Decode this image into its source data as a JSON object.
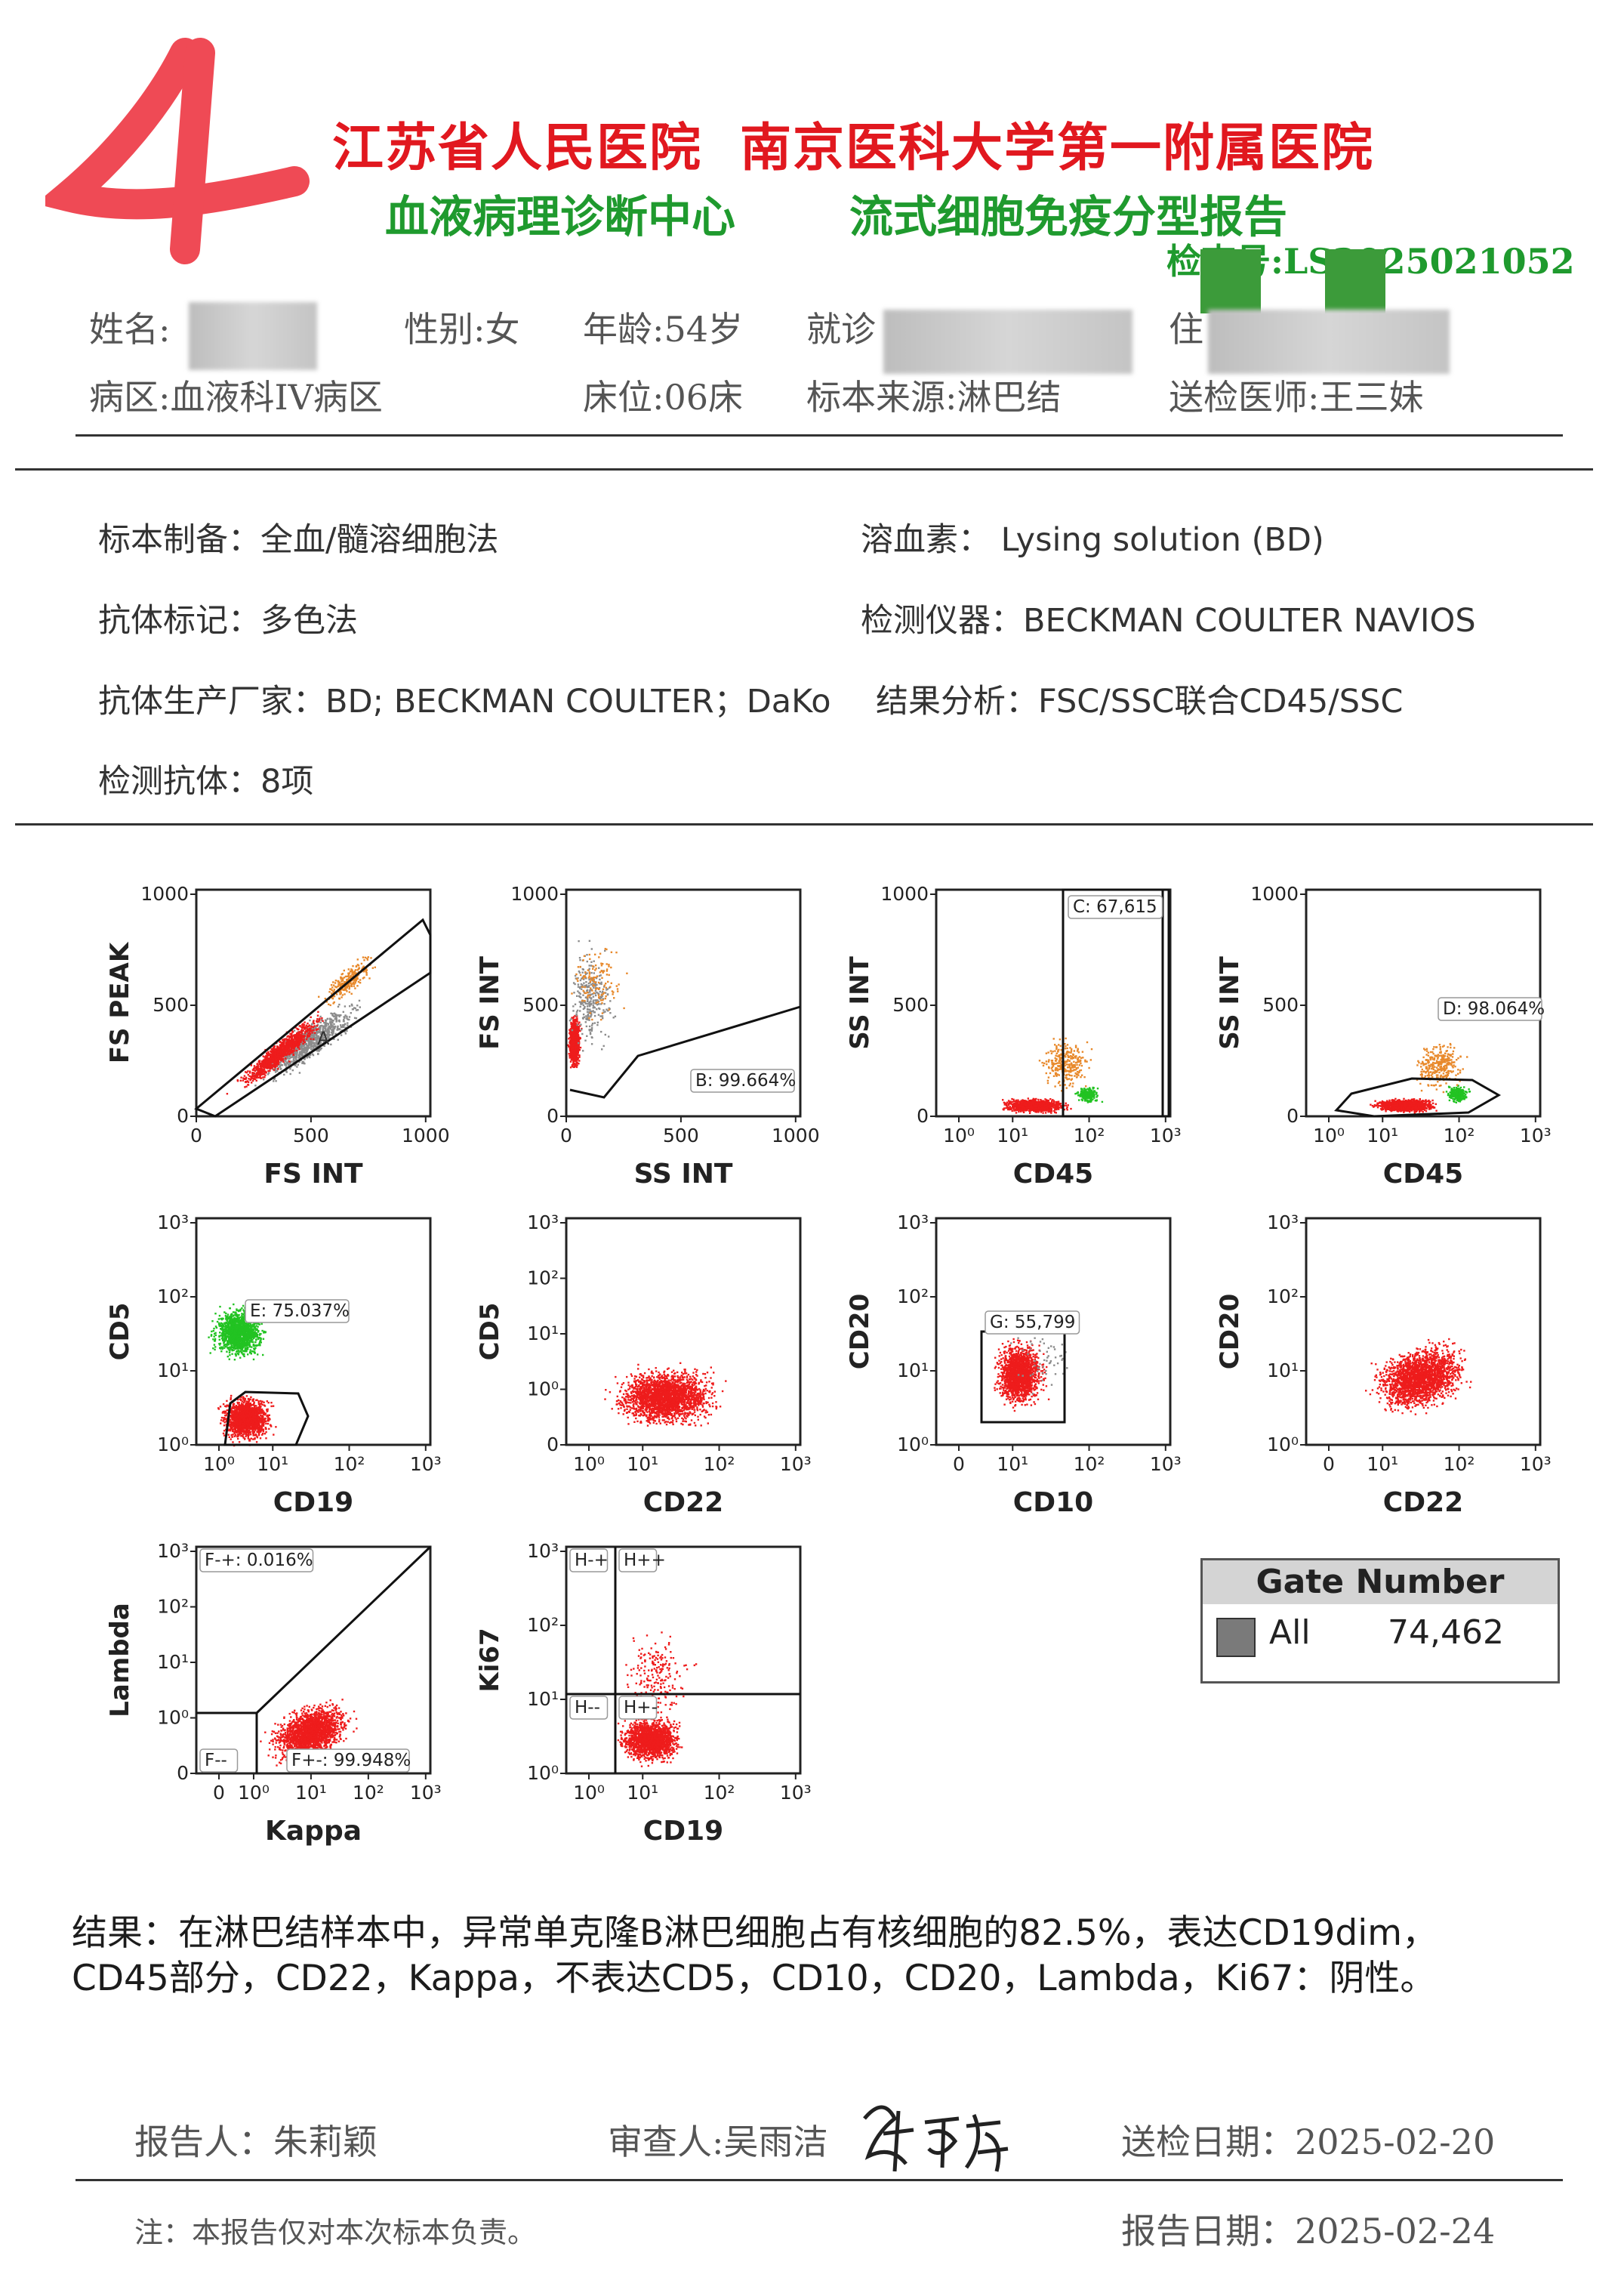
{
  "stamp": {
    "text": "4"
  },
  "header": {
    "hospital_1": "江苏省人民医院",
    "hospital_2": "南京医科大学第一附属医院",
    "center": "血液病理诊断中心",
    "report_title": "流式细胞免疫分型报告",
    "exam_no": "检查号:LS2025021052"
  },
  "patient": {
    "name_label": "姓名:",
    "gender": "性别:女",
    "age": "年龄:54岁",
    "visit_label": "就诊",
    "admit_label": "住",
    "ward": "病区:血液科IV病区",
    "bed": "床位:06床",
    "specimen_source": "标本来源:淋巴结",
    "doctor": "送检医师:王三妹"
  },
  "method": {
    "prep": "标本制备：全血/髓溶细胞法",
    "lysing": "溶血素： Lysing solution (BD)",
    "marking": "抗体标记：多色法",
    "instrument": "检测仪器：BECKMAN COULTER NAVIOS",
    "manufacturer": "抗体生产厂家：BD; BECKMAN COULTER；DaKo",
    "analysis": "结果分析：FSC/SSC联合CD45/SSC",
    "antibodies": "检测抗体：8项"
  },
  "plots": [
    {
      "id": "p1",
      "xlabel": "FS INT",
      "ylabel": "FS PEAK",
      "xticks": [
        "0",
        "500",
        "1000"
      ],
      "yticks": [
        "1000",
        "500",
        "0"
      ],
      "gate": "A",
      "gate_label": ""
    },
    {
      "id": "p2",
      "xlabel": "SS INT",
      "ylabel": "FS INT",
      "xticks": [
        "0",
        "500",
        "1000"
      ],
      "yticks": [
        "1000",
        "500",
        "0"
      ],
      "gate_label": "B: 99.664%"
    },
    {
      "id": "p3",
      "xlabel": "CD45",
      "ylabel": "SS INT",
      "xticks": [
        "10⁰",
        "10¹",
        "10²",
        "10³"
      ],
      "yticks": [
        "1000",
        "500",
        "0"
      ],
      "gate_label": "C: 67,615"
    },
    {
      "id": "p4",
      "xlabel": "CD45",
      "ylabel": "SS INT",
      "xticks": [
        "10⁰",
        "10¹",
        "10²",
        "10³"
      ],
      "yticks": [
        "1000",
        "500",
        "0"
      ],
      "gate_label": "D: 98.064%"
    },
    {
      "id": "p5",
      "xlabel": "CD19",
      "ylabel": "CD5",
      "xticks": [
        "10⁰",
        "10¹",
        "10²",
        "10³"
      ],
      "yticks": [
        "10³",
        "10²",
        "10¹",
        "10⁰"
      ],
      "gate_label": "E: 75.037%"
    },
    {
      "id": "p6",
      "xlabel": "CD22",
      "ylabel": "CD5",
      "xticks": [
        "10⁰",
        "10¹",
        "10²",
        "10³"
      ],
      "yticks": [
        "10³",
        "10²",
        "10¹",
        "10⁰",
        "0"
      ],
      "gate_label": ""
    },
    {
      "id": "p7",
      "xlabel": "CD10",
      "ylabel": "CD20",
      "xticks": [
        "0",
        "10¹",
        "10²",
        "10³"
      ],
      "yticks": [
        "10³",
        "10²",
        "10¹",
        "10⁰"
      ],
      "gate_label": "G: 55,799"
    },
    {
      "id": "p8",
      "xlabel": "CD22",
      "ylabel": "CD20",
      "xticks": [
        "0",
        "10¹",
        "10²",
        "10³"
      ],
      "yticks": [
        "10³",
        "10²",
        "10¹",
        "10⁰"
      ],
      "gate_label": ""
    },
    {
      "id": "p9",
      "xlabel": "Kappa",
      "ylabel": "Lambda",
      "xticks": [
        "0",
        "10⁰",
        "10¹",
        "10²",
        "10³"
      ],
      "yticks": [
        "10³",
        "10²",
        "10¹",
        "10⁰",
        "0"
      ],
      "gate_label": "F-+: 0.016%",
      "gate_label_2": "F--",
      "gate_label_3": "F+-: 99.948%"
    },
    {
      "id": "p10",
      "xlabel": "CD19",
      "ylabel": "Ki67",
      "xticks": [
        "10⁰",
        "10¹",
        "10²",
        "10³"
      ],
      "yticks": [
        "10³",
        "10²",
        "10¹",
        "10⁰"
      ],
      "gate_label": "H-+",
      "gate_label_2": "H++",
      "gate_label_3": "H--",
      "gate_label_4": "H+-"
    }
  ],
  "gate_number": {
    "title": "Gate Number",
    "row_label": "All",
    "row_value": "74,462",
    "swatch_color": "#7a7a7a"
  },
  "result": {
    "line1": "结果：在淋巴结样本中，异常单克隆B淋巴细胞占有核细胞的82.5%，表达CD19dim，",
    "line2": "CD45部分，CD22，Kappa，不表达CD5，CD10，CD20，Lambda，Ki67：阴性。"
  },
  "footer": {
    "reporter": "报告人：朱莉颖",
    "reviewer": "审查人:吴雨洁",
    "signature": "吴雨洁",
    "submit_date": "送检日期：2025-02-20",
    "note": "注：本报告仅对本次标本负责。",
    "report_date": "报告日期：2025-02-24"
  },
  "colors": {
    "red": "#e1181f",
    "green": "#1f9a2e",
    "dot_red": "#ee1c1c",
    "dot_green": "#22c322",
    "dot_orange": "#e8892b",
    "dot_grey": "#8c8c8c"
  }
}
